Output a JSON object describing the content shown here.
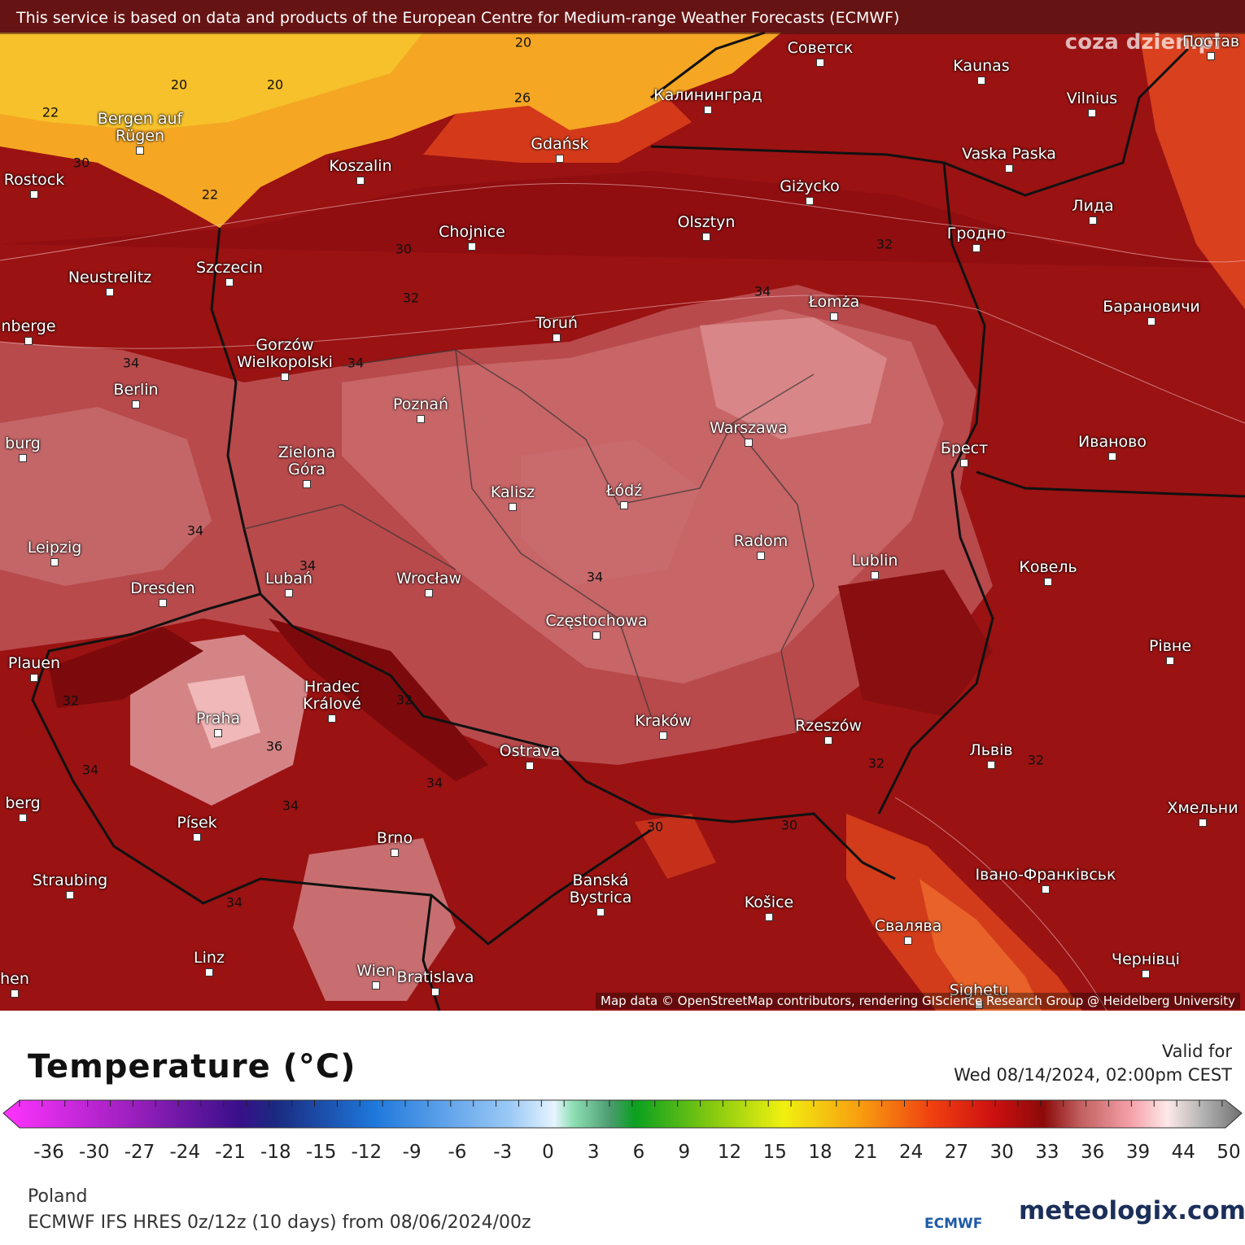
{
  "header": {
    "notice": "This service is based on data and products of the European Centre for Medium-range Weather Forecasts (ECMWF)"
  },
  "watermark": "coza dzien.pl",
  "map": {
    "cities": [
      "Советск",
      "Kaunas",
      "Vilnius",
      "Калининград",
      "Bergen auf Rügen",
      "Gdańsk",
      "Koszalin",
      "Rostock",
      "Vaska Paska",
      "Giżycko",
      "Olsztyn",
      "Chojnice",
      "Гродно",
      "Лида",
      "Szczecin",
      "Neustrelitz",
      "Łomża",
      "Барановичи",
      "Toruń",
      "Gorzów Wielkopolski",
      "Berlin",
      "Poznań",
      "Warszawa",
      "Брест",
      "Иваново",
      "Zielona Góra",
      "Kalisz",
      "Łódź",
      "Radom",
      "Lublin",
      "Ковель",
      "Leipzig",
      "Dresden",
      "Lubań",
      "Wrocław",
      "Częstochowa",
      "Рівне",
      "Plauen",
      "Hradec Králové",
      "Praha",
      "Kraków",
      "Rzeszów",
      "Львів",
      "Ostrava",
      "Хмельни",
      "Písek",
      "Brno",
      "Івано-Франківськ",
      "Straubing",
      "Banská Bystrica",
      "Košice",
      "Свалява",
      "Linz",
      "Wien",
      "Bratislava",
      "Чернівці",
      "Sighetu",
      "nberge",
      "burg",
      "berg",
      "hen",
      "Постав"
    ],
    "contour_labels": [
      "20",
      "20",
      "20",
      "22",
      "22",
      "26",
      "30",
      "30",
      "32",
      "34",
      "34",
      "34",
      "34",
      "34",
      "36",
      "34",
      "34",
      "32",
      "32",
      "30",
      "34",
      "32",
      "32",
      "34",
      "30",
      "32",
      "34"
    ],
    "attribution": "Map data © OpenStreetMap contributors, rendering GIScience Research Group @ Heidelberg University"
  },
  "legend": {
    "title": "Temperature (°C)",
    "valid_label": "Valid for",
    "valid_time": "Wed 08/14/2024, 02:00pm CEST",
    "ticks": [
      "-36",
      "-30",
      "-27",
      "-24",
      "-21",
      "-18",
      "-15",
      "-12",
      "-9",
      "-6",
      "-3",
      "0",
      "3",
      "6",
      "9",
      "12",
      "15",
      "18",
      "21",
      "24",
      "27",
      "30",
      "33",
      "36",
      "39",
      "44",
      "50"
    ]
  },
  "footer": {
    "region": "Poland",
    "model": "ECMWF IFS HRES 0z/12z (10 days) from 08/06/2024/00z",
    "ecmwf_logo": "ECMWF",
    "site": "meteologix.com"
  }
}
